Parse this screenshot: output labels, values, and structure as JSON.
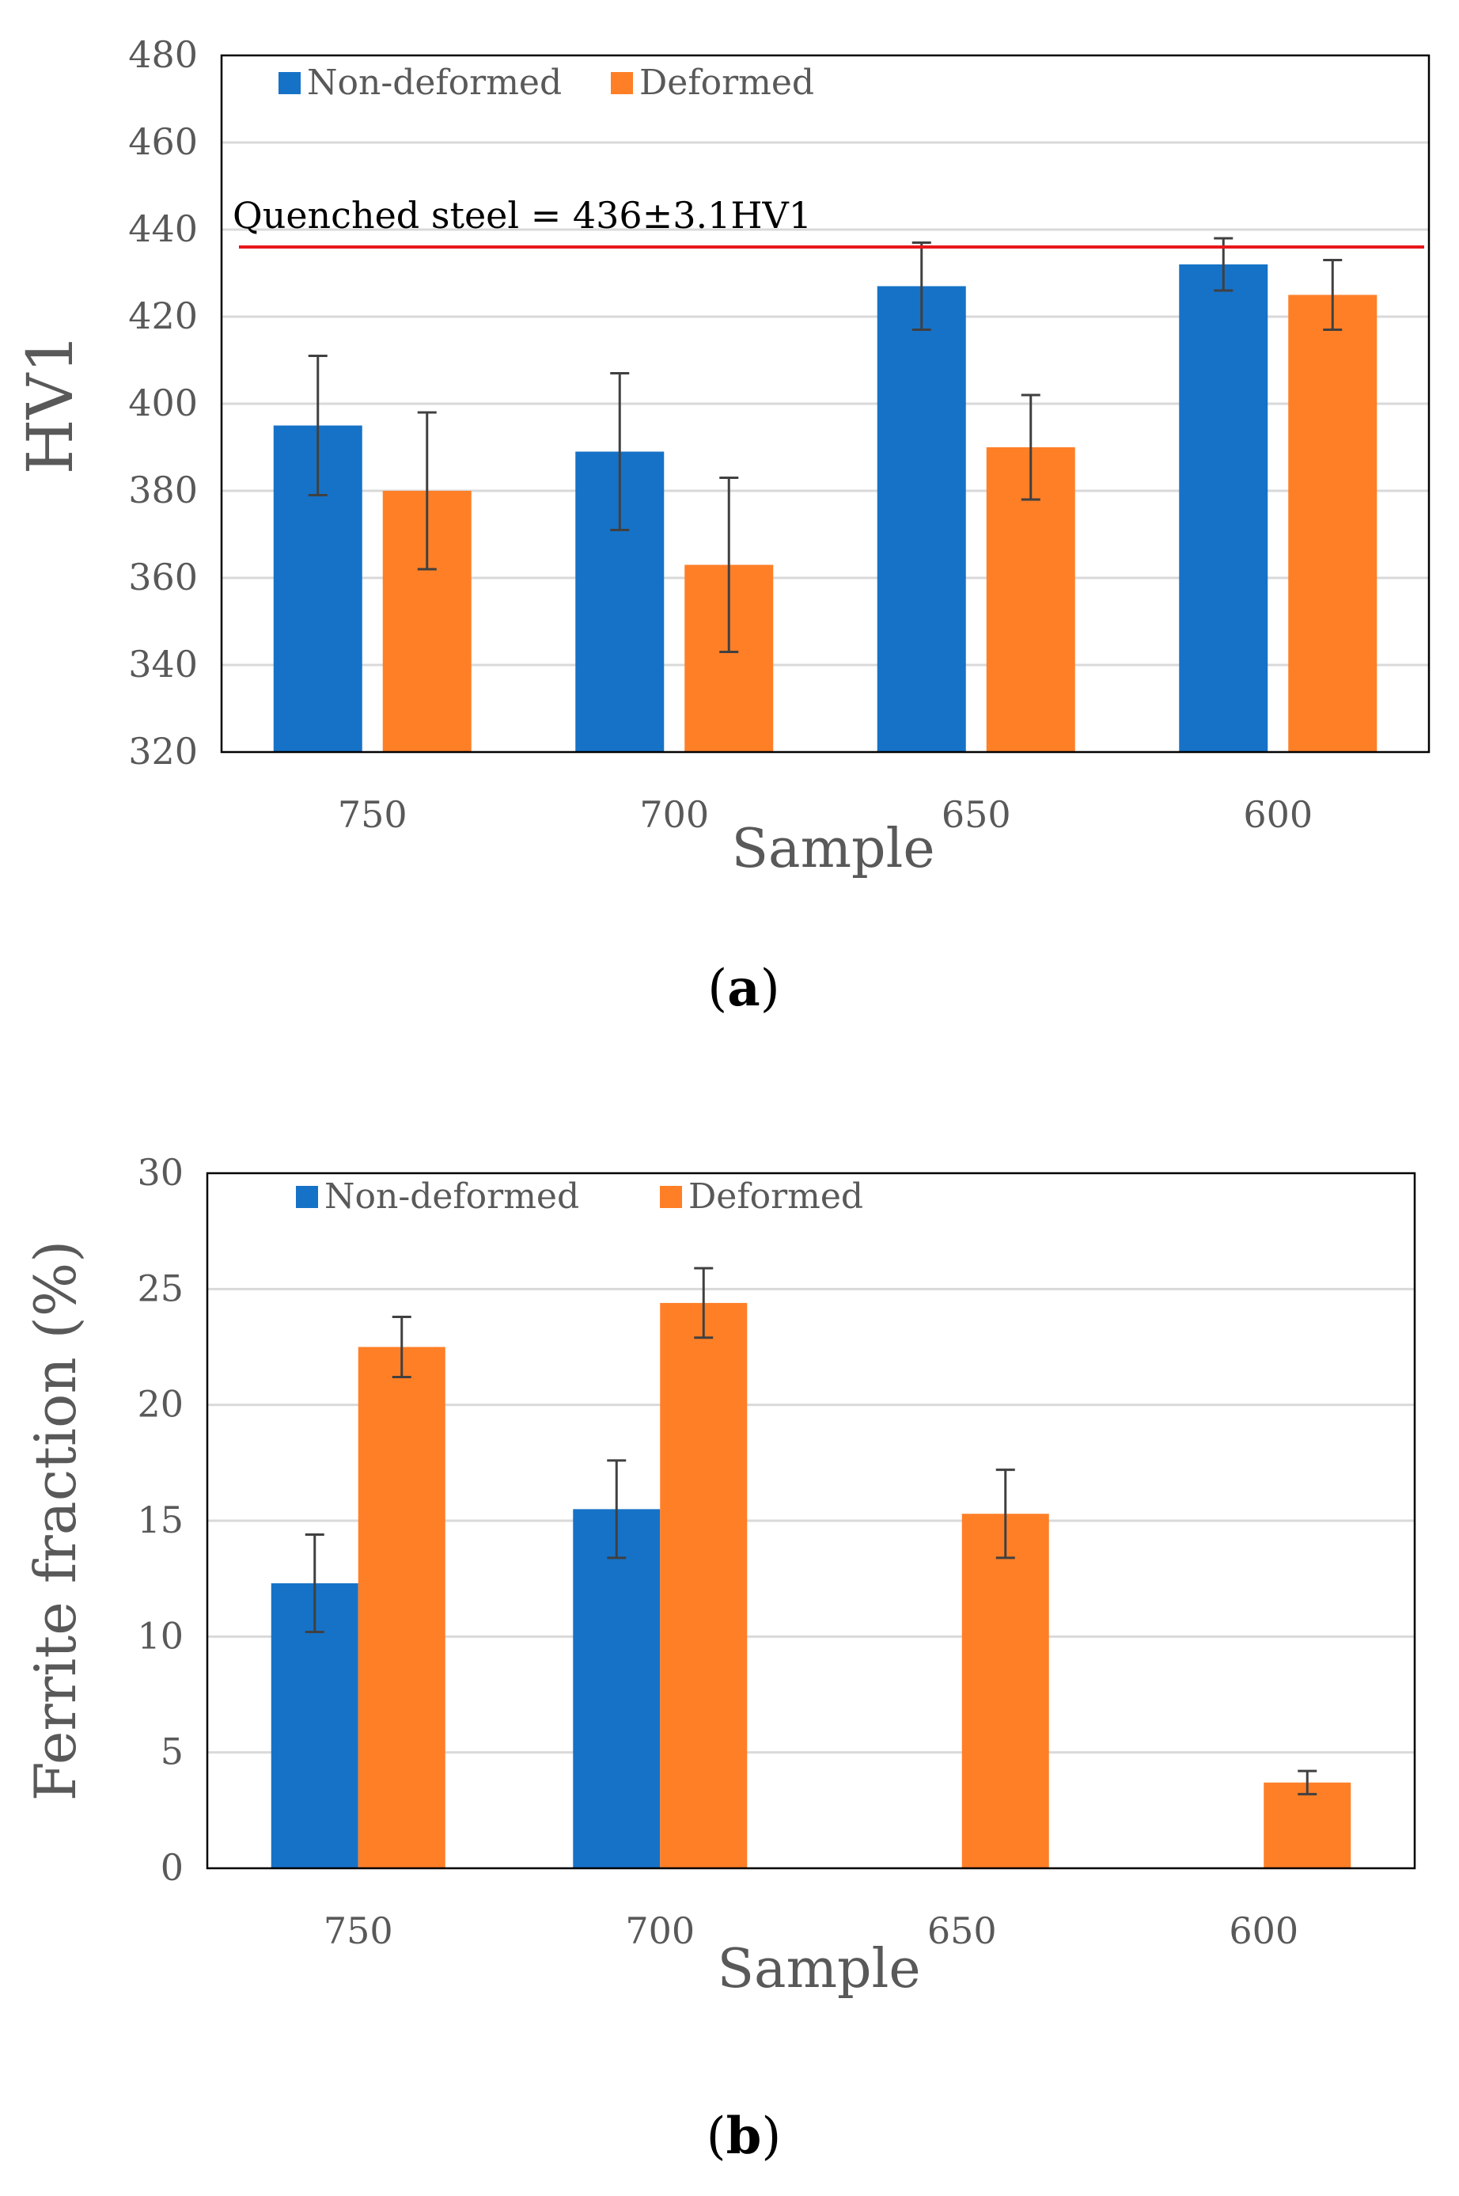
{
  "chart_data": [
    {
      "type": "bar",
      "panel_label": "a",
      "categories": [
        "750",
        "700",
        "650",
        "600"
      ],
      "series": [
        {
          "name": "Non-deformed",
          "color": "#1672C7",
          "values": [
            395,
            389,
            427,
            432
          ],
          "errors": [
            16,
            18,
            10,
            6
          ]
        },
        {
          "name": "Deformed",
          "color": "#FF7F27",
          "values": [
            380,
            363,
            390,
            425
          ],
          "errors": [
            18,
            20,
            12,
            8
          ]
        }
      ],
      "xlabel": "Sample",
      "ylabel": "HV1",
      "ylim": [
        320,
        480
      ],
      "yticks": [
        320,
        340,
        360,
        380,
        400,
        420,
        440,
        460,
        480
      ],
      "reference_line": {
        "value": 436,
        "color": "#E8161B",
        "label": "Quenched steel = 436±3.1HV1"
      },
      "legend_position": "top-left",
      "grid": true
    },
    {
      "type": "bar",
      "panel_label": "b",
      "categories": [
        "750",
        "700",
        "650",
        "600"
      ],
      "series": [
        {
          "name": "Non-deformed",
          "color": "#1672C7",
          "values": [
            12.3,
            15.5,
            0,
            0
          ],
          "errors": [
            2.1,
            2.1,
            0,
            0
          ]
        },
        {
          "name": "Deformed",
          "color": "#FF7F27",
          "values": [
            22.5,
            24.4,
            15.3,
            3.7
          ],
          "errors": [
            1.3,
            1.5,
            1.9,
            0.5
          ]
        }
      ],
      "xlabel": "Sample",
      "ylabel": "Ferrite fraction (%)",
      "ylim": [
        0,
        30
      ],
      "yticks": [
        0,
        5,
        10,
        15,
        20,
        25,
        30
      ],
      "legend_position": "top-left",
      "grid": true
    }
  ]
}
